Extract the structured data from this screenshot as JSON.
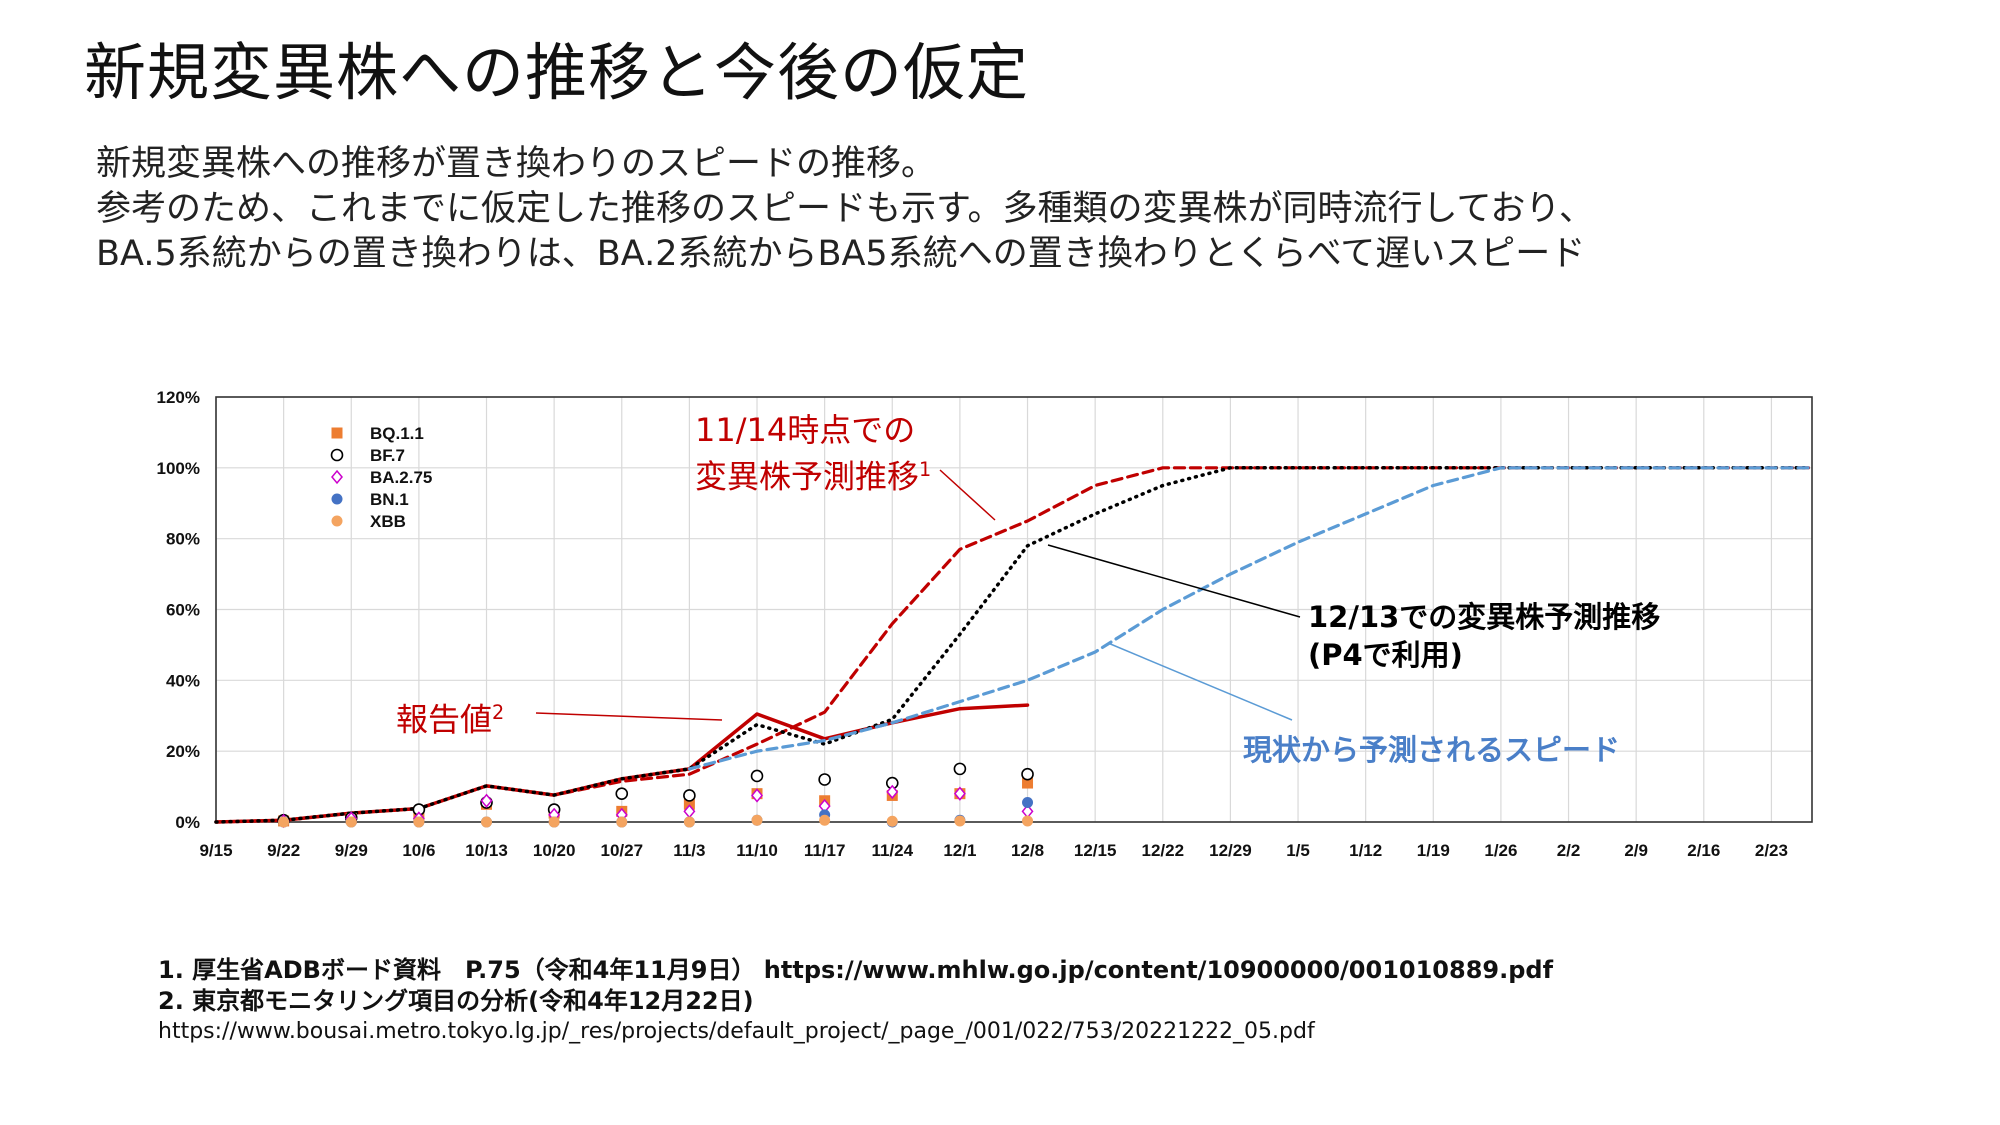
{
  "slide": {
    "title": "新規変異株への推移と今後の仮定",
    "subtitle_lines": [
      "新規変異株への推移が置き換わりのスピードの推移。",
      "参考のため、これまでに仮定した推移のスピードも示す。多種類の変異株が同時流行しており、",
      "BA.5系統からの置き換わりは、BA.2系統からBA5系統への置き換わりとくらべて遅いスピード"
    ],
    "footnotes": [
      "1.  厚生省ADBボード資料　P.75（令和4年11月9日）  https://www.mhlw.go.jp/content/10900000/001010889.pdf",
      "2.  東京都モニタリング項目の分析(令和4年12月22日)",
      "https://www.bousai.metro.tokyo.lg.jp/_res/projects/default_project/_page_/001/022/753/20221222_05.pdf"
    ]
  },
  "annotations": {
    "nov14_line1": "11/14時点での",
    "nov14_line2": "変異株予測推移",
    "nov14_sup": "1",
    "dec13_line1": "12/13での変異株予測推移",
    "dec13_line2": "(P4で利用)",
    "current": "現状から予測されるスピード",
    "reported": "報告値",
    "reported_sup": "2"
  },
  "colors": {
    "red": "#c00000",
    "dark_red_dash": "#c00000",
    "black_dotted": "#000000",
    "blue_dash": "#5b9bd5",
    "bq11": "#ed7d31",
    "bf7": "#000000",
    "ba275": "#cc00cc",
    "bn1": "#4472c4",
    "xbb": "#f4a460",
    "grid": "#d9d9d9"
  },
  "chart_data": {
    "type": "line",
    "x_ticks": [
      "9/15",
      "9/22",
      "9/29",
      "10/6",
      "10/13",
      "10/20",
      "10/27",
      "11/3",
      "11/10",
      "11/17",
      "11/24",
      "12/1",
      "12/8",
      "12/15",
      "12/22",
      "12/29",
      "1/5",
      "1/12",
      "1/19",
      "1/26",
      "2/2",
      "2/9",
      "2/16",
      "2/23"
    ],
    "y_ticks": [
      "0%",
      "20%",
      "40%",
      "60%",
      "80%",
      "100%",
      "120%"
    ],
    "ylim": [
      0,
      120
    ],
    "xlim_weeks": [
      0,
      23.6
    ],
    "legend": [
      {
        "key": "bq11",
        "label": "BQ.1.1",
        "marker": "square",
        "color": "#ed7d31"
      },
      {
        "key": "bf7",
        "label": "BF.7",
        "marker": "circle-open",
        "color": "#000000"
      },
      {
        "key": "ba275",
        "label": "BA.2.75",
        "marker": "diamond-open",
        "color": "#cc00cc"
      },
      {
        "key": "bn1",
        "label": "BN.1",
        "marker": "circle",
        "color": "#4472c4"
      },
      {
        "key": "xbb",
        "label": "XBB",
        "marker": "circle",
        "color": "#f4a460"
      }
    ],
    "series": [
      {
        "key": "reported",
        "style": "solid",
        "color": "#c00000",
        "x": [
          "9/15",
          "9/22",
          "9/29",
          "10/6",
          "10/13",
          "10/20",
          "10/27",
          "11/3",
          "11/10",
          "11/17",
          "11/24",
          "12/1",
          "12/8"
        ],
        "values": [
          0,
          0.5,
          2.5,
          3.8,
          10.2,
          7.6,
          12.2,
          15,
          30.5,
          23.5,
          28,
          32,
          33
        ]
      },
      {
        "key": "forecast_1114",
        "style": "dashed",
        "color": "#c00000",
        "x": [
          "9/15",
          "9/22",
          "9/29",
          "10/6",
          "10/13",
          "10/20",
          "10/27",
          "11/3",
          "11/10",
          "11/17",
          "11/24",
          "12/1",
          "12/8",
          "12/15",
          "12/22",
          "12/29",
          "1/5",
          "2/27"
        ],
        "values": [
          0,
          0.5,
          2.5,
          3.8,
          10.2,
          7.6,
          11.5,
          13.5,
          22,
          31,
          56,
          77,
          85,
          95,
          100,
          100,
          100,
          100
        ]
      },
      {
        "key": "forecast_1213",
        "style": "dotted",
        "color": "#000000",
        "x": [
          "9/15",
          "9/22",
          "9/29",
          "10/6",
          "10/13",
          "10/20",
          "10/27",
          "11/3",
          "11/10",
          "11/17",
          "11/24",
          "12/1",
          "12/8",
          "12/15",
          "12/22",
          "12/29",
          "1/5",
          "2/27"
        ],
        "values": [
          0,
          0.5,
          2.5,
          3.8,
          10.2,
          7.6,
          12.2,
          15,
          27.5,
          22,
          29,
          53,
          78,
          87,
          95,
          100,
          100,
          100
        ]
      },
      {
        "key": "current_pace",
        "style": "dashed",
        "color": "#5b9bd5",
        "x": [
          "11/3",
          "11/10",
          "11/17",
          "11/24",
          "12/1",
          "12/8",
          "12/15",
          "12/22",
          "12/29",
          "1/5",
          "1/12",
          "1/19",
          "1/26",
          "2/27"
        ],
        "values": [
          15,
          20,
          23,
          28,
          34,
          40,
          48,
          60,
          70,
          79,
          87,
          95,
          100,
          100
        ]
      }
    ],
    "variant_points": {
      "x": [
        "9/22",
        "9/29",
        "10/6",
        "10/13",
        "10/20",
        "10/27",
        "11/3",
        "11/10",
        "11/17",
        "11/24",
        "12/1",
        "12/8"
      ],
      "bq11": [
        0.3,
        1.0,
        1.5,
        5.0,
        2.5,
        3.0,
        5.0,
        8.0,
        6.0,
        7.5,
        8.0,
        11.0
      ],
      "bf7": [
        0.5,
        1.2,
        3.5,
        5.5,
        3.5,
        8.0,
        7.5,
        13.0,
        12.0,
        11.0,
        15.0,
        13.5
      ],
      "ba275": [
        0.3,
        1.0,
        1.0,
        6.0,
        2.0,
        2.0,
        3.0,
        7.5,
        4.5,
        8.5,
        8.0,
        3.0
      ],
      "bn1": [
        0,
        0,
        0,
        0,
        0,
        0,
        0,
        0.5,
        2.0,
        0,
        0.5,
        5.5
      ],
      "xbb": [
        0,
        0,
        0,
        0,
        0,
        0,
        0,
        0.5,
        0.5,
        0.2,
        0.3,
        0.3
      ]
    }
  }
}
